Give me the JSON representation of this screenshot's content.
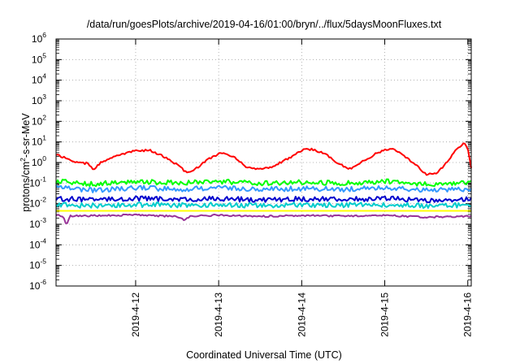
{
  "chart_data": {
    "type": "line",
    "title": "/data/run/goesPlots/archive/2019-04-16/01:00/bryn/../flux/5daysMoonFluxes.txt",
    "xlabel": "Coordinated Universal Time (UTC)",
    "ylabel": {
      "prefix": "protons/cm",
      "sup": "2",
      "suffix": "-s-sr-MeV"
    },
    "y_scale": "log",
    "ylim": [
      1e-06,
      1000000.0
    ],
    "y_ticks": [
      {
        "base": "10",
        "exp": "-6",
        "value": 1e-06
      },
      {
        "base": "10",
        "exp": "-5",
        "value": 1e-05
      },
      {
        "base": "10",
        "exp": "-4",
        "value": 0.0001
      },
      {
        "base": "10",
        "exp": "-3",
        "value": 0.001
      },
      {
        "base": "10",
        "exp": "-2",
        "value": 0.01
      },
      {
        "base": "10",
        "exp": "-1",
        "value": 0.1
      },
      {
        "base": "10",
        "exp": "0",
        "value": 1
      },
      {
        "base": "10",
        "exp": "1",
        "value": 10
      },
      {
        "base": "10",
        "exp": "2",
        "value": 100
      },
      {
        "base": "10",
        "exp": "3",
        "value": 1000
      },
      {
        "base": "10",
        "exp": "4",
        "value": 10000
      },
      {
        "base": "10",
        "exp": "5",
        "value": 100000
      },
      {
        "base": "10",
        "exp": "6",
        "value": 1000000
      }
    ],
    "xlim": [
      "2019-04-11T01:00",
      "2019-04-16T01:00"
    ],
    "x_ticks": [
      {
        "label": "2019-4-12",
        "value": "2019-04-12T00:00"
      },
      {
        "label": "2019-4-13",
        "value": "2019-04-13T00:00"
      },
      {
        "label": "2019-4-14",
        "value": "2019-04-14T00:00"
      },
      {
        "label": "2019-4-15",
        "value": "2019-04-15T00:00"
      },
      {
        "label": "2019-4-16",
        "value": "2019-04-16T00:00"
      }
    ],
    "grid": true,
    "legend": "none",
    "series": [
      {
        "color": "#ff0000",
        "points": [
          [
            "2019-04-11T01:00",
            2.5
          ],
          [
            "2019-04-11T04:00",
            1.6
          ],
          [
            "2019-04-11T07:00",
            1.0
          ],
          [
            "2019-04-11T10:00",
            0.9
          ],
          [
            "2019-04-11T12:00",
            0.45
          ],
          [
            "2019-04-11T14:00",
            1.0
          ],
          [
            "2019-04-11T18:00",
            2.0
          ],
          [
            "2019-04-11T23:00",
            3.5
          ],
          [
            "2019-04-12T04:00",
            4.0
          ],
          [
            "2019-04-12T08:00",
            2.0
          ],
          [
            "2019-04-12T12:00",
            0.8
          ],
          [
            "2019-04-12T15:00",
            0.3
          ],
          [
            "2019-04-12T18:00",
            0.6
          ],
          [
            "2019-04-12T21:00",
            1.5
          ],
          [
            "2019-04-13T01:00",
            3.0
          ],
          [
            "2019-04-13T04:00",
            2.0
          ],
          [
            "2019-04-13T08:00",
            0.6
          ],
          [
            "2019-04-13T11:00",
            0.45
          ],
          [
            "2019-04-13T15:00",
            0.6
          ],
          [
            "2019-04-13T20:00",
            1.5
          ],
          [
            "2019-04-14T00:00",
            4.0
          ],
          [
            "2019-04-14T03:00",
            4.5
          ],
          [
            "2019-04-14T07:00",
            2.5
          ],
          [
            "2019-04-14T11:00",
            0.8
          ],
          [
            "2019-04-14T14:00",
            0.5
          ],
          [
            "2019-04-14T17:00",
            1.0
          ],
          [
            "2019-04-14T22:00",
            3.0
          ],
          [
            "2019-04-15T02:00",
            5.0
          ],
          [
            "2019-04-15T05:00",
            2.5
          ],
          [
            "2019-04-15T09:00",
            0.8
          ],
          [
            "2019-04-15T12:00",
            0.25
          ],
          [
            "2019-04-15T15:00",
            0.3
          ],
          [
            "2019-04-15T18:00",
            1.0
          ],
          [
            "2019-04-15T21:00",
            5.0
          ],
          [
            "2019-04-15T23:00",
            9.0
          ],
          [
            "2019-04-16T00:00",
            5.0
          ],
          [
            "2019-04-16T01:00",
            0.5
          ]
        ]
      },
      {
        "color": "#00ff00",
        "points": [
          [
            "2019-04-11T01:00",
            0.12
          ],
          [
            "2019-04-11T12:00",
            0.09
          ],
          [
            "2019-04-12T00:00",
            0.12
          ],
          [
            "2019-04-12T12:00",
            0.1
          ],
          [
            "2019-04-13T00:00",
            0.12
          ],
          [
            "2019-04-13T12:00",
            0.1
          ],
          [
            "2019-04-14T00:00",
            0.11
          ],
          [
            "2019-04-14T12:00",
            0.1
          ],
          [
            "2019-04-15T00:00",
            0.12
          ],
          [
            "2019-04-15T12:00",
            0.09
          ],
          [
            "2019-04-16T01:00",
            0.11
          ]
        ]
      },
      {
        "color": "#3399ff",
        "points": [
          [
            "2019-04-11T01:00",
            0.06
          ],
          [
            "2019-04-11T12:00",
            0.045
          ],
          [
            "2019-04-12T00:00",
            0.06
          ],
          [
            "2019-04-12T12:00",
            0.05
          ],
          [
            "2019-04-13T00:00",
            0.06
          ],
          [
            "2019-04-13T12:00",
            0.05
          ],
          [
            "2019-04-14T00:00",
            0.055
          ],
          [
            "2019-04-14T12:00",
            0.05
          ],
          [
            "2019-04-15T00:00",
            0.06
          ],
          [
            "2019-04-15T12:00",
            0.045
          ],
          [
            "2019-04-16T01:00",
            0.05
          ]
        ]
      },
      {
        "color": "#0000cc",
        "points": [
          [
            "2019-04-11T01:00",
            0.018
          ],
          [
            "2019-04-11T12:00",
            0.015
          ],
          [
            "2019-04-12T00:00",
            0.018
          ],
          [
            "2019-04-12T12:00",
            0.016
          ],
          [
            "2019-04-13T00:00",
            0.018
          ],
          [
            "2019-04-13T12:00",
            0.015
          ],
          [
            "2019-04-14T00:00",
            0.017
          ],
          [
            "2019-04-14T12:00",
            0.016
          ],
          [
            "2019-04-15T00:00",
            0.018
          ],
          [
            "2019-04-15T12:00",
            0.015
          ],
          [
            "2019-04-16T01:00",
            0.016
          ]
        ]
      },
      {
        "color": "#00cccc",
        "points": [
          [
            "2019-04-11T01:00",
            0.009
          ],
          [
            "2019-04-11T12:00",
            0.008
          ],
          [
            "2019-04-12T00:00",
            0.009
          ],
          [
            "2019-04-12T12:00",
            0.0085
          ],
          [
            "2019-04-13T00:00",
            0.009
          ],
          [
            "2019-04-13T12:00",
            0.008
          ],
          [
            "2019-04-14T00:00",
            0.0088
          ],
          [
            "2019-04-14T12:00",
            0.0085
          ],
          [
            "2019-04-15T00:00",
            0.009
          ],
          [
            "2019-04-15T12:00",
            0.008
          ],
          [
            "2019-04-16T01:00",
            0.0085
          ]
        ]
      },
      {
        "color": "#ffff00",
        "points": [
          [
            "2019-04-11T01:00",
            0.0045
          ],
          [
            "2019-04-12T00:00",
            0.0045
          ],
          [
            "2019-04-13T00:00",
            0.0045
          ],
          [
            "2019-04-14T00:00",
            0.0045
          ],
          [
            "2019-04-15T00:00",
            0.0045
          ],
          [
            "2019-04-16T01:00",
            0.0045
          ]
        ]
      },
      {
        "color": "#993399",
        "points": [
          [
            "2019-04-11T01:00",
            0.0028
          ],
          [
            "2019-04-11T03:00",
            0.0025
          ],
          [
            "2019-04-11T04:00",
            0.0009
          ],
          [
            "2019-04-11T05:00",
            0.0026
          ],
          [
            "2019-04-11T12:00",
            0.0026
          ],
          [
            "2019-04-12T00:00",
            0.0028
          ],
          [
            "2019-04-12T12:00",
            0.0024
          ],
          [
            "2019-04-12T14:00",
            0.0016
          ],
          [
            "2019-04-12T16:00",
            0.0025
          ],
          [
            "2019-04-13T00:00",
            0.0028
          ],
          [
            "2019-04-13T12:00",
            0.0024
          ],
          [
            "2019-04-14T00:00",
            0.0027
          ],
          [
            "2019-04-14T12:00",
            0.0025
          ],
          [
            "2019-04-15T00:00",
            0.0027
          ],
          [
            "2019-04-15T12:00",
            0.0022
          ],
          [
            "2019-04-16T01:00",
            0.0025
          ]
        ]
      }
    ]
  }
}
